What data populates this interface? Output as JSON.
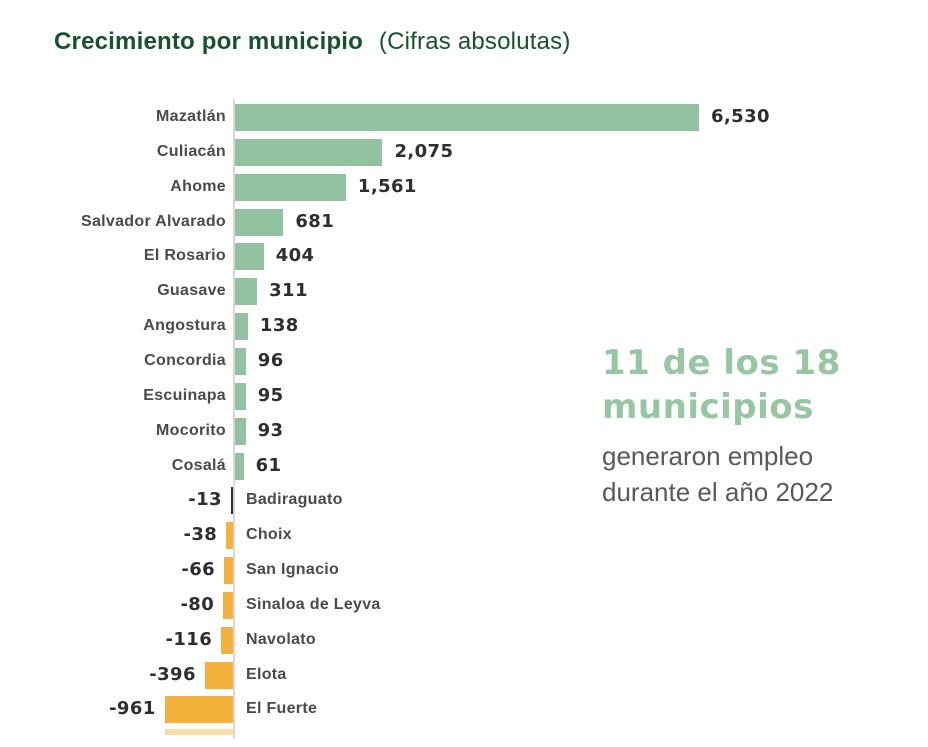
{
  "title": {
    "main": "Crecimiento por municipio",
    "suffix": "(Cifras absolutas)",
    "color": "#17522E"
  },
  "annotation": {
    "headline_lines": [
      "11 de los 18",
      "municipios"
    ],
    "body_lines": [
      "generaron empleo",
      "durante el año 2022"
    ],
    "headline_color": "#97C6A3",
    "body_color": "#58595B"
  },
  "chart_data": {
    "type": "bar",
    "orientation": "horizontal",
    "title": "Crecimiento por municipio (Cifras absolutas)",
    "xlabel": "",
    "ylabel": "",
    "xlim": [
      -1000,
      6600
    ],
    "grid": false,
    "legend": false,
    "zero_baseline": true,
    "categories": [
      "Mazatlán",
      "Culiacán",
      "Ahome",
      "Salvador Alvarado",
      "El Rosario",
      "Guasave",
      "Angostura",
      "Concordia",
      "Escuinapa",
      "Mocorito",
      "Cosalá",
      "Badiraguato",
      "Choix",
      "San Ignacio",
      "Sinaloa de Leyva",
      "Navolato",
      "Elota",
      "El Fuerte"
    ],
    "values": [
      6530,
      2075,
      1561,
      681,
      404,
      311,
      138,
      96,
      95,
      93,
      61,
      -13,
      -38,
      -66,
      -80,
      -116,
      -396,
      -961
    ],
    "value_labels": [
      "6,530",
      "2,075",
      "1,561",
      "681",
      "404",
      "311",
      "138",
      "96",
      "95",
      "93",
      "61",
      "-13",
      "-38",
      "-66",
      "-80",
      "-116",
      "-396",
      "-961"
    ],
    "positive_color": "#93C2A0",
    "negative_color": "#F4B13C",
    "tiny_bar_color": "#2F2F2F",
    "axis_line_color": "#D8D8D8",
    "category_label_color": "#4A4A4A",
    "value_label_color": "#2E2E2E"
  }
}
